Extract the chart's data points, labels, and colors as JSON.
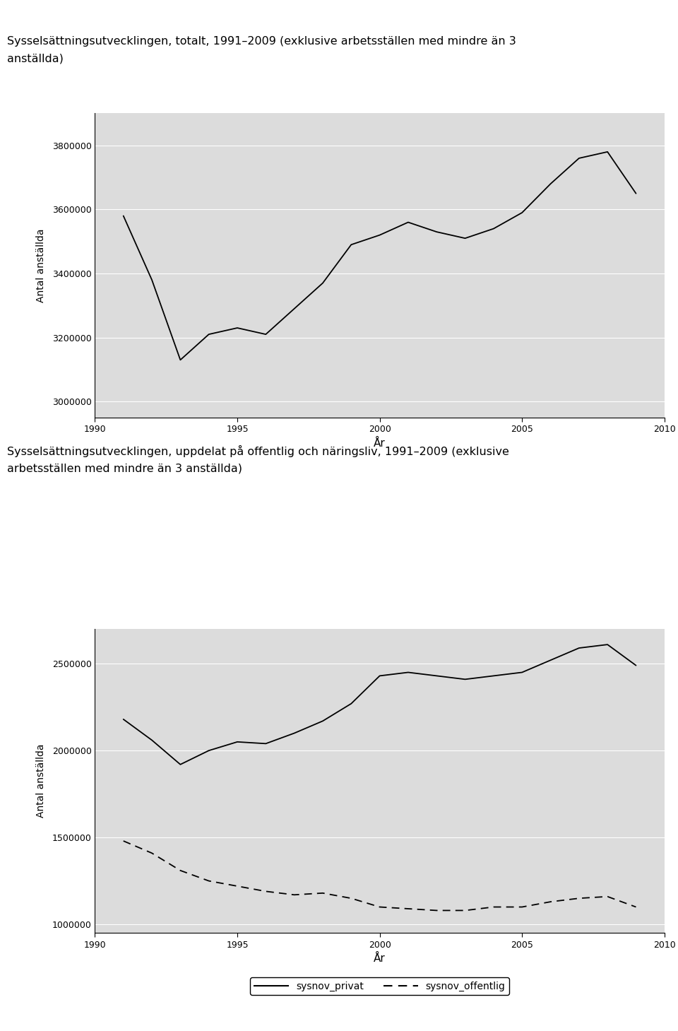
{
  "title1_line1": "Sysselsättningsutvecklingen, totalt, 1991–2009 (exklusive arbetsställen med mindre än 3",
  "title1_line2": "anställda)",
  "title2_line1": "Sysselsättningsutvecklingen, uppdelat på offentlig och näringsliv, 1991–2009 (exklusive",
  "title2_line2": "arbetsställen med mindre än 3 anställda)",
  "ylabel": "Antal anställda",
  "xlabel": "År",
  "years": [
    1991,
    1992,
    1993,
    1994,
    1995,
    1996,
    1997,
    1998,
    1999,
    2000,
    2001,
    2002,
    2003,
    2004,
    2005,
    2006,
    2007,
    2008,
    2009
  ],
  "total": [
    3580000,
    3380000,
    3130000,
    3210000,
    3230000,
    3210000,
    3290000,
    3370000,
    3490000,
    3520000,
    3560000,
    3530000,
    3510000,
    3540000,
    3590000,
    3680000,
    3760000,
    3780000,
    3650000
  ],
  "privat": [
    2180000,
    2060000,
    1920000,
    2000000,
    2050000,
    2040000,
    2100000,
    2170000,
    2270000,
    2430000,
    2450000,
    2430000,
    2410000,
    2430000,
    2450000,
    2520000,
    2590000,
    2610000,
    2490000
  ],
  "offentlig": [
    1480000,
    1410000,
    1310000,
    1250000,
    1220000,
    1190000,
    1170000,
    1180000,
    1150000,
    1100000,
    1090000,
    1080000,
    1080000,
    1100000,
    1100000,
    1130000,
    1150000,
    1160000,
    1100000
  ],
  "ylim1": [
    2950000,
    3900000
  ],
  "yticks1": [
    3000000,
    3200000,
    3400000,
    3600000,
    3800000
  ],
  "ylim2": [
    950000,
    2700000
  ],
  "yticks2": [
    1000000,
    1500000,
    2000000,
    2500000
  ],
  "xticks": [
    1990,
    1995,
    2000,
    2005,
    2010
  ],
  "xlim": [
    1990,
    2010
  ],
  "bg_color": "#dcdcdc",
  "line_color": "#000000",
  "grid_color": "#ffffff",
  "fig_bg": "#ffffff",
  "legend_label_privat": "sysnov_privat",
  "legend_label_offentlig": "sysnov_offentlig"
}
